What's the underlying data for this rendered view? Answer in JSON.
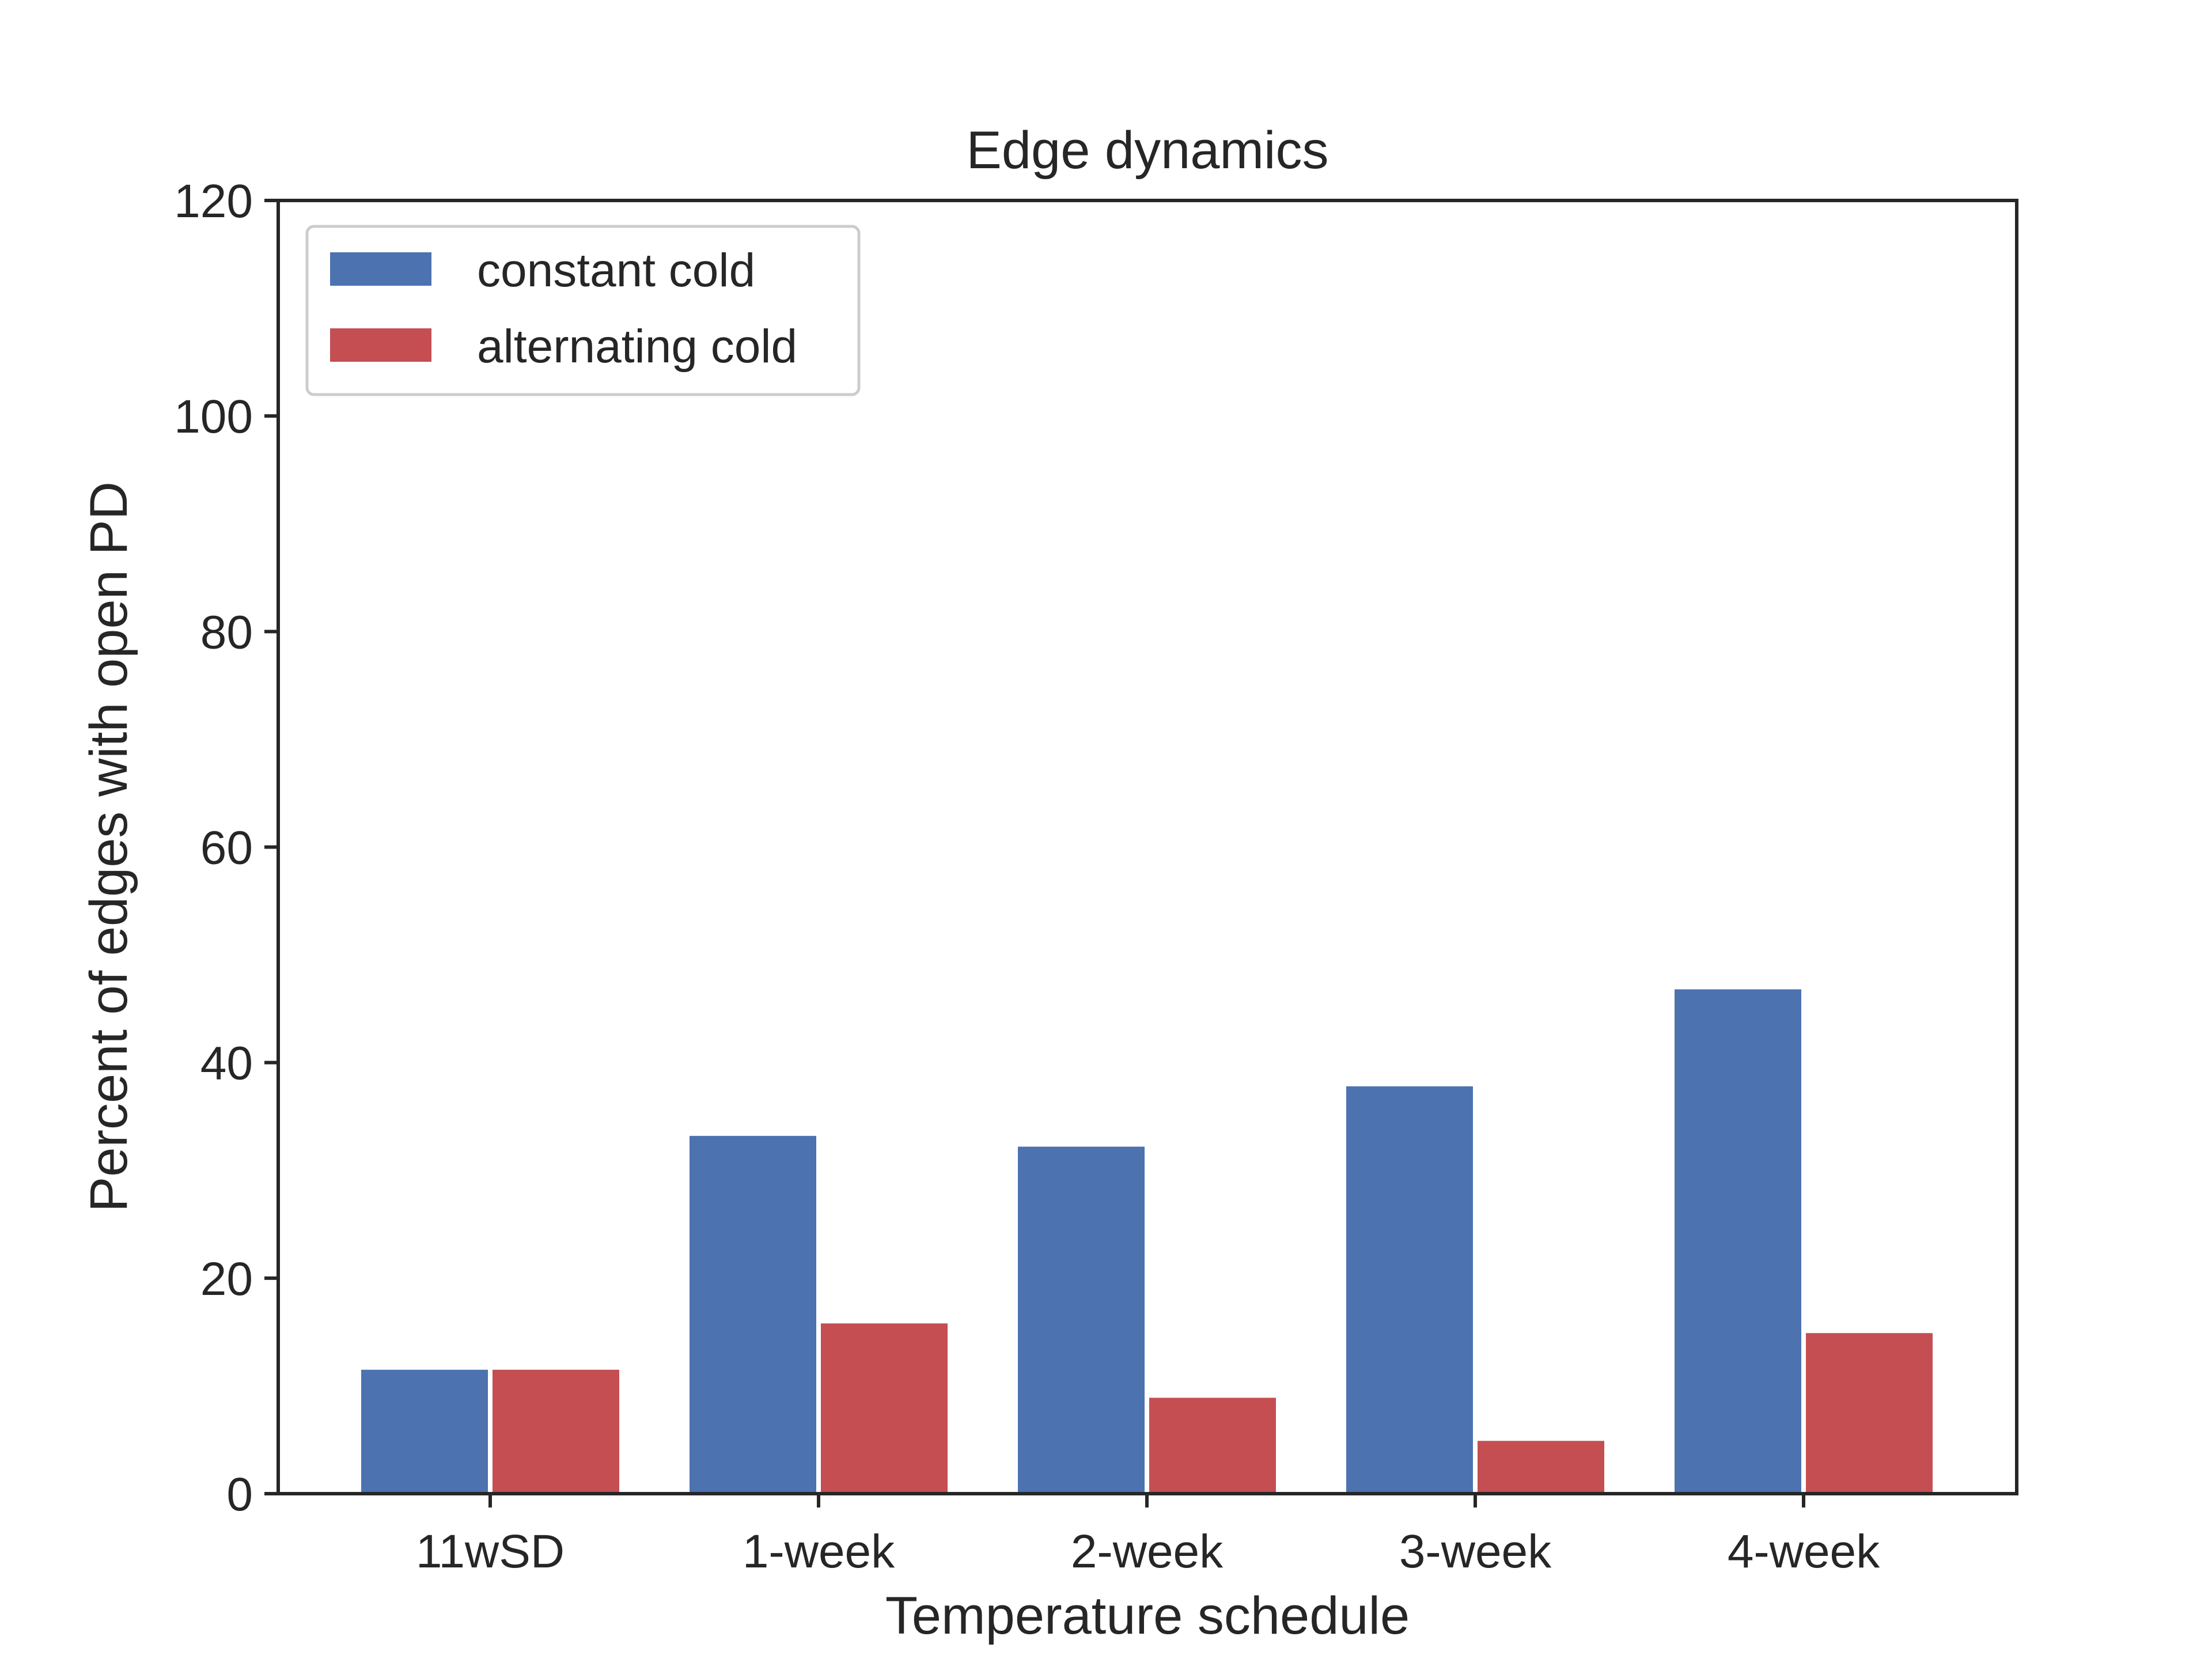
{
  "chart_data": {
    "type": "bar",
    "title": "Edge dynamics",
    "xlabel": "Temperature schedule",
    "ylabel": "Percent of edges with open PD",
    "categories": [
      "11wSD",
      "1-week",
      "2-week",
      "3-week",
      "4-week"
    ],
    "series": [
      {
        "name": "constant cold",
        "color": "#4c72b0",
        "values": [
          11.5,
          33.2,
          32.2,
          37.8,
          46.8
        ]
      },
      {
        "name": "alternating cold",
        "color": "#c44e52",
        "values": [
          11.5,
          15.8,
          8.9,
          4.9,
          14.9
        ]
      }
    ],
    "ylim": [
      0,
      120
    ],
    "yticks": [
      0,
      20,
      40,
      60,
      80,
      100,
      120
    ],
    "grid": false,
    "legend_position": "top-left"
  }
}
